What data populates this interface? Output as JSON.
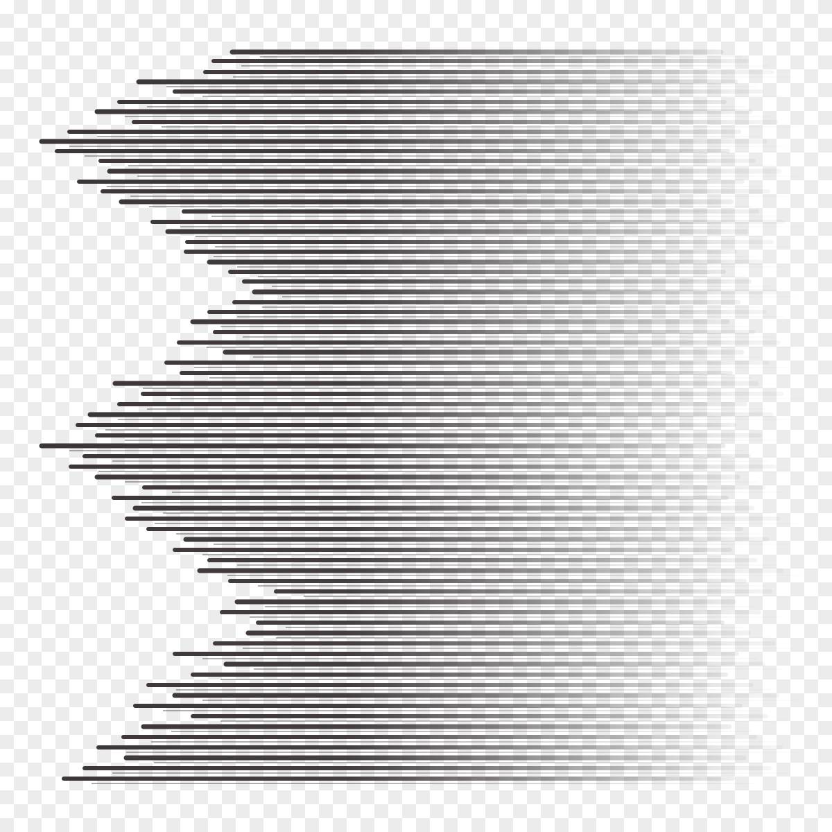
{
  "artwork": {
    "icon": "speed-lines-illustration",
    "stroke_color": "#3a3436",
    "fade_color": "#ffffff",
    "background": "transparent-checkerboard"
  }
}
